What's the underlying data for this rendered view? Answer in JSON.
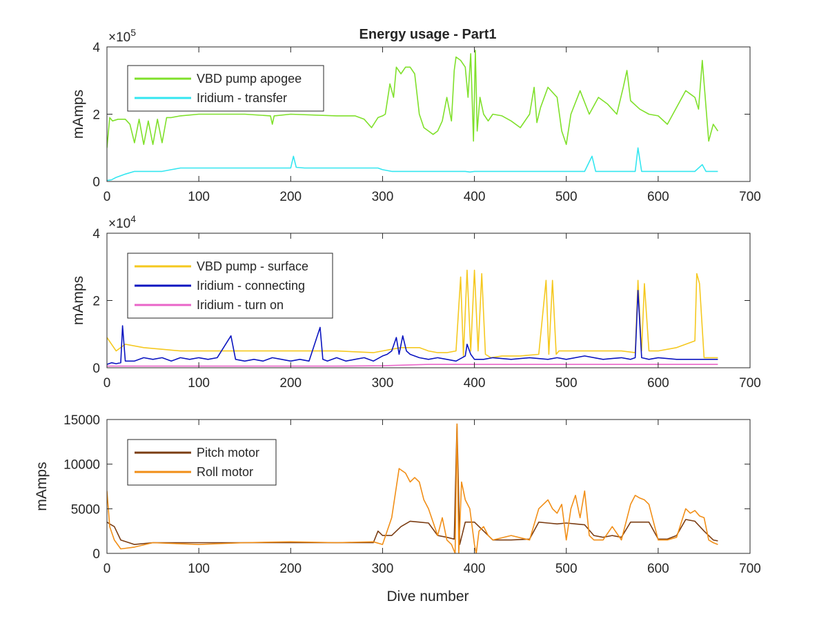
{
  "figure": {
    "background": "#ffffff",
    "axis_color": "#262626"
  },
  "chart_data": [
    {
      "type": "line",
      "title": "Energy usage - Part1",
      "xlabel": "",
      "ylabel": "mAmps",
      "xlim": [
        0,
        700
      ],
      "ylim": [
        0,
        400000
      ],
      "xticks": [
        0,
        100,
        200,
        300,
        400,
        500,
        600,
        700
      ],
      "xtick_labels": [
        "0",
        "100",
        "200",
        "300",
        "400",
        "500",
        "600",
        "700"
      ],
      "yticks": [
        0,
        200000,
        400000
      ],
      "ytick_labels": [
        "0",
        "2",
        "4"
      ],
      "exponent_label": "×10",
      "exponent_power": "5",
      "grid": false,
      "legend_position": "top-left",
      "series": [
        {
          "name": "VBD pump apogee",
          "color": "#7fe02a",
          "x": [
            0,
            3,
            6,
            12,
            20,
            25,
            30,
            35,
            40,
            45,
            50,
            55,
            60,
            65,
            70,
            80,
            100,
            150,
            178,
            180,
            182,
            200,
            250,
            270,
            280,
            288,
            295,
            300,
            303,
            308,
            312,
            315,
            320,
            325,
            330,
            335,
            340,
            345,
            350,
            355,
            360,
            365,
            370,
            375,
            378,
            380,
            385,
            390,
            393,
            396,
            399,
            401,
            403,
            406,
            410,
            415,
            420,
            430,
            440,
            450,
            460,
            465,
            468,
            472,
            480,
            490,
            495,
            500,
            505,
            515,
            525,
            535,
            545,
            555,
            562,
            566,
            570,
            580,
            590,
            600,
            610,
            620,
            630,
            635,
            640,
            644,
            648,
            655,
            660,
            665
          ],
          "y": [
            100000,
            190000,
            180000,
            185000,
            185000,
            170000,
            115000,
            185000,
            110000,
            180000,
            110000,
            185000,
            115000,
            190000,
            190000,
            195000,
            200000,
            200000,
            195000,
            170000,
            195000,
            200000,
            195000,
            195000,
            185000,
            160000,
            190000,
            195000,
            200000,
            290000,
            250000,
            340000,
            320000,
            340000,
            340000,
            320000,
            200000,
            160000,
            150000,
            140000,
            150000,
            180000,
            250000,
            180000,
            330000,
            370000,
            360000,
            340000,
            250000,
            380000,
            120000,
            390000,
            150000,
            250000,
            200000,
            180000,
            200000,
            195000,
            180000,
            160000,
            200000,
            280000,
            175000,
            220000,
            280000,
            250000,
            150000,
            110000,
            200000,
            270000,
            200000,
            250000,
            230000,
            200000,
            280000,
            330000,
            240000,
            215000,
            200000,
            195000,
            170000,
            220000,
            270000,
            260000,
            250000,
            215000,
            360000,
            120000,
            170000,
            150000
          ]
        },
        {
          "name": "Iridium - transfer",
          "color": "#33e6f0",
          "x": [
            0,
            5,
            10,
            20,
            30,
            40,
            50,
            60,
            70,
            80,
            100,
            150,
            200,
            203,
            206,
            215,
            250,
            280,
            295,
            300,
            310,
            320,
            330,
            340,
            350,
            360,
            370,
            380,
            390,
            395,
            400,
            410,
            420,
            440,
            460,
            480,
            500,
            520,
            528,
            532,
            540,
            560,
            575,
            578,
            582,
            590,
            600,
            620,
            640,
            648,
            652,
            660,
            665
          ],
          "y": [
            3000,
            5000,
            12000,
            22000,
            30000,
            30000,
            30000,
            30000,
            35000,
            40000,
            40000,
            40000,
            40000,
            75000,
            42000,
            40000,
            40000,
            40000,
            40000,
            35000,
            30000,
            30000,
            30000,
            30000,
            30000,
            30000,
            30000,
            30000,
            30000,
            28000,
            30000,
            30000,
            30000,
            30000,
            30000,
            30000,
            30000,
            30000,
            75000,
            30000,
            30000,
            30000,
            30000,
            100000,
            30000,
            30000,
            30000,
            30000,
            30000,
            50000,
            30000,
            30000,
            30000
          ]
        }
      ]
    },
    {
      "type": "line",
      "title": "",
      "xlabel": "",
      "ylabel": "mAmps",
      "xlim": [
        0,
        700
      ],
      "ylim": [
        0,
        40000
      ],
      "xticks": [
        0,
        100,
        200,
        300,
        400,
        500,
        600,
        700
      ],
      "xtick_labels": [
        "0",
        "100",
        "200",
        "300",
        "400",
        "500",
        "600",
        "700"
      ],
      "yticks": [
        0,
        20000,
        40000
      ],
      "ytick_labels": [
        "0",
        "2",
        "4"
      ],
      "exponent_label": "×10",
      "exponent_power": "4",
      "grid": false,
      "legend_position": "top-left",
      "series": [
        {
          "name": "VBD pump - surface",
          "color": "#f5c81e",
          "x": [
            0,
            5,
            10,
            20,
            40,
            60,
            80,
            100,
            150,
            200,
            250,
            290,
            300,
            310,
            320,
            330,
            340,
            350,
            360,
            370,
            380,
            385,
            388,
            392,
            396,
            400,
            404,
            408,
            412,
            418,
            430,
            450,
            470,
            478,
            481,
            485,
            489,
            492,
            500,
            520,
            540,
            560,
            575,
            578,
            582,
            585,
            590,
            600,
            620,
            640,
            642,
            645,
            650,
            660,
            665
          ],
          "y": [
            9000,
            7000,
            5000,
            7000,
            6000,
            5500,
            5000,
            5000,
            5000,
            5000,
            5000,
            4500,
            5000,
            5500,
            6000,
            6000,
            6000,
            5000,
            4500,
            4500,
            5000,
            27000,
            3500,
            29000,
            5000,
            29000,
            5000,
            28000,
            4000,
            3000,
            3500,
            3500,
            4000,
            26000,
            4000,
            26000,
            4000,
            5000,
            5000,
            5000,
            5000,
            5000,
            4500,
            26000,
            5000,
            25000,
            5000,
            5000,
            6000,
            8000,
            28000,
            25000,
            3000,
            3000,
            3000
          ]
        },
        {
          "name": "Iridium - connecting",
          "color": "#0a14c0",
          "x": [
            0,
            5,
            10,
            15,
            17,
            20,
            30,
            40,
            50,
            60,
            70,
            80,
            90,
            100,
            110,
            120,
            135,
            140,
            150,
            160,
            170,
            180,
            190,
            200,
            210,
            220,
            232,
            235,
            240,
            250,
            260,
            270,
            280,
            290,
            300,
            305,
            310,
            315,
            318,
            322,
            326,
            330,
            340,
            350,
            360,
            370,
            380,
            390,
            392,
            396,
            400,
            410,
            420,
            440,
            460,
            480,
            490,
            500,
            520,
            540,
            560,
            570,
            575,
            578,
            582,
            590,
            600,
            620,
            640,
            660,
            665
          ],
          "y": [
            1000,
            1500,
            1200,
            1500,
            12500,
            2000,
            2000,
            3000,
            2500,
            3000,
            2000,
            3000,
            2500,
            3000,
            2500,
            3000,
            9500,
            2500,
            2000,
            2500,
            2000,
            3000,
            2500,
            2000,
            2500,
            2000,
            12000,
            2500,
            2000,
            3000,
            2000,
            2500,
            3000,
            2000,
            3500,
            4000,
            5000,
            9000,
            4000,
            9500,
            5000,
            4000,
            3000,
            2500,
            3000,
            2500,
            2000,
            3500,
            7000,
            4000,
            2500,
            2500,
            3000,
            2500,
            3000,
            2500,
            3000,
            2500,
            3500,
            2500,
            3000,
            2500,
            3000,
            23000,
            3000,
            2500,
            3000,
            2500,
            2500,
            2500,
            2500
          ]
        },
        {
          "name": "Iridium - turn on",
          "color": "#e964c8",
          "x": [
            0,
            50,
            100,
            150,
            200,
            250,
            300,
            350,
            400,
            450,
            500,
            550,
            600,
            650,
            665
          ],
          "y": [
            500,
            500,
            500,
            500,
            500,
            500,
            600,
            1000,
            1000,
            1000,
            1000,
            1000,
            1000,
            1000,
            1000
          ]
        }
      ]
    },
    {
      "type": "line",
      "title": "",
      "xlabel": "Dive number",
      "ylabel": "mAmps",
      "xlim": [
        0,
        700
      ],
      "ylim": [
        0,
        15000
      ],
      "xticks": [
        0,
        100,
        200,
        300,
        400,
        500,
        600,
        700
      ],
      "xtick_labels": [
        "0",
        "100",
        "200",
        "300",
        "400",
        "500",
        "600",
        "700"
      ],
      "yticks": [
        0,
        5000,
        10000,
        15000
      ],
      "ytick_labels": [
        "0",
        "5000",
        "10000",
        "15000"
      ],
      "exponent_label": "",
      "exponent_power": "",
      "grid": false,
      "legend_position": "top-left",
      "series": [
        {
          "name": "Pitch motor",
          "color": "#7a3c12",
          "x": [
            0,
            3,
            8,
            15,
            30,
            50,
            100,
            150,
            200,
            250,
            290,
            295,
            300,
            310,
            320,
            330,
            340,
            350,
            360,
            370,
            378,
            381,
            384,
            390,
            400,
            420,
            440,
            460,
            470,
            480,
            490,
            500,
            510,
            520,
            530,
            540,
            550,
            560,
            570,
            580,
            590,
            600,
            610,
            620,
            630,
            640,
            650,
            660,
            665
          ],
          "y": [
            3500,
            3300,
            3000,
            1500,
            1000,
            1200,
            1200,
            1200,
            1200,
            1200,
            1200,
            2500,
            2000,
            2000,
            3000,
            3600,
            3500,
            3400,
            2000,
            1800,
            1600,
            14500,
            1000,
            3500,
            3500,
            1500,
            1500,
            1600,
            3500,
            3400,
            3300,
            3400,
            3300,
            3200,
            2000,
            1800,
            2000,
            1800,
            3500,
            3500,
            3500,
            1600,
            1600,
            2000,
            3800,
            3600,
            2500,
            1500,
            1400
          ]
        },
        {
          "name": "Roll motor",
          "color": "#f18e16",
          "x": [
            0,
            3,
            8,
            15,
            30,
            50,
            100,
            150,
            200,
            250,
            290,
            300,
            310,
            318,
            325,
            330,
            335,
            340,
            345,
            350,
            360,
            365,
            370,
            375,
            379,
            381,
            383,
            386,
            390,
            395,
            400,
            402,
            405,
            410,
            415,
            420,
            440,
            460,
            470,
            480,
            485,
            490,
            495,
            500,
            505,
            510,
            515,
            520,
            525,
            530,
            540,
            550,
            560,
            570,
            575,
            580,
            585,
            590,
            600,
            610,
            620,
            630,
            635,
            640,
            645,
            650,
            655,
            660,
            665
          ],
          "y": [
            7000,
            3000,
            1500,
            500,
            700,
            1200,
            1000,
            1200,
            1300,
            1200,
            1300,
            1000,
            4000,
            9500,
            9000,
            8000,
            8500,
            8000,
            6000,
            5000,
            2000,
            4000,
            1500,
            1000,
            0,
            14500,
            0,
            8000,
            6000,
            5000,
            1000,
            0,
            2500,
            3000,
            2000,
            1500,
            2000,
            1500,
            5000,
            6000,
            5000,
            4500,
            5500,
            1500,
            5000,
            6500,
            4000,
            7000,
            2000,
            1500,
            1500,
            3000,
            1500,
            5500,
            6500,
            6200,
            6000,
            5500,
            1500,
            1500,
            1800,
            5000,
            4500,
            4800,
            4200,
            4000,
            1500,
            1200,
            1000
          ]
        }
      ]
    }
  ]
}
